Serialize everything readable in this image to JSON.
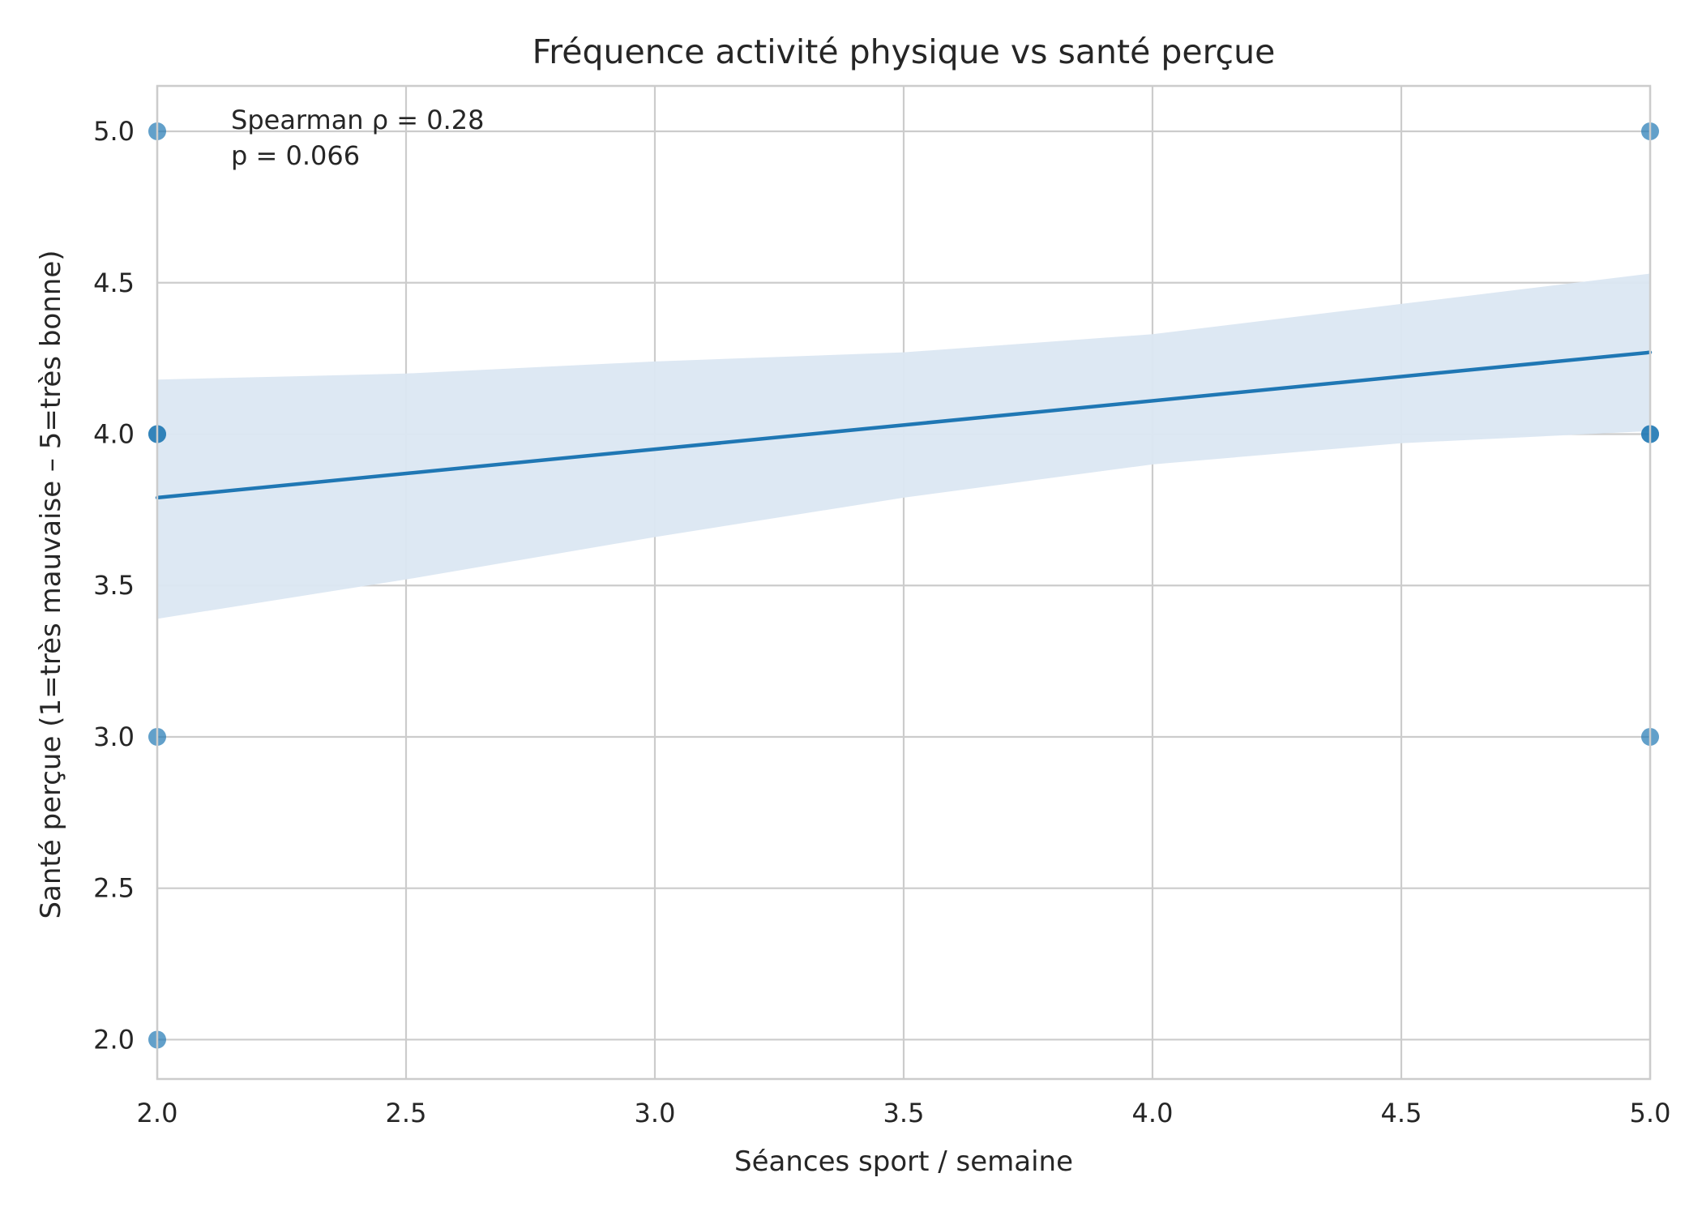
{
  "chart_data": {
    "type": "scatter",
    "title": "Fréquence activité physique vs santé perçue",
    "xlabel": "Séances sport / semaine",
    "ylabel": "Santé perçue (1=très mauvaise – 5=très bonne)",
    "xlim": [
      2.0,
      5.0
    ],
    "ylim": [
      1.87,
      5.15
    ],
    "xticks": [
      2.0,
      2.5,
      3.0,
      3.5,
      4.0,
      4.5,
      5.0
    ],
    "xtick_labels": [
      "2.0",
      "2.5",
      "3.0",
      "3.5",
      "4.0",
      "4.5",
      "5.0"
    ],
    "yticks": [
      2.0,
      2.5,
      3.0,
      3.5,
      4.0,
      4.5,
      5.0
    ],
    "ytick_labels": [
      "2.0",
      "2.5",
      "3.0",
      "3.5",
      "4.0",
      "4.5",
      "5.0"
    ],
    "grid": true,
    "legend": "none",
    "annotation": [
      "Spearman ρ = 0.28",
      "p = 0.066"
    ],
    "points": [
      {
        "x": 2,
        "y": 5
      },
      {
        "x": 2,
        "y": 4
      },
      {
        "x": 2,
        "y": 4
      },
      {
        "x": 2,
        "y": 3
      },
      {
        "x": 2,
        "y": 2
      },
      {
        "x": 5,
        "y": 5
      },
      {
        "x": 5,
        "y": 4
      },
      {
        "x": 5,
        "y": 4
      },
      {
        "x": 5,
        "y": 3
      }
    ],
    "regression": {
      "x": [
        2.0,
        5.0
      ],
      "y": [
        3.79,
        4.27
      ]
    },
    "confidence_band": {
      "x": [
        2.0,
        2.5,
        3.0,
        3.5,
        4.0,
        4.5,
        5.0
      ],
      "lower": [
        3.39,
        3.52,
        3.66,
        3.79,
        3.9,
        3.97,
        4.01
      ],
      "upper": [
        4.18,
        4.2,
        4.24,
        4.27,
        4.33,
        4.43,
        4.53
      ]
    },
    "colors": {
      "points": "#1f77b4",
      "line": "#1f77b4",
      "band": "#dbe7f2",
      "grid": "#cccccc",
      "frame": "#cccccc"
    }
  }
}
